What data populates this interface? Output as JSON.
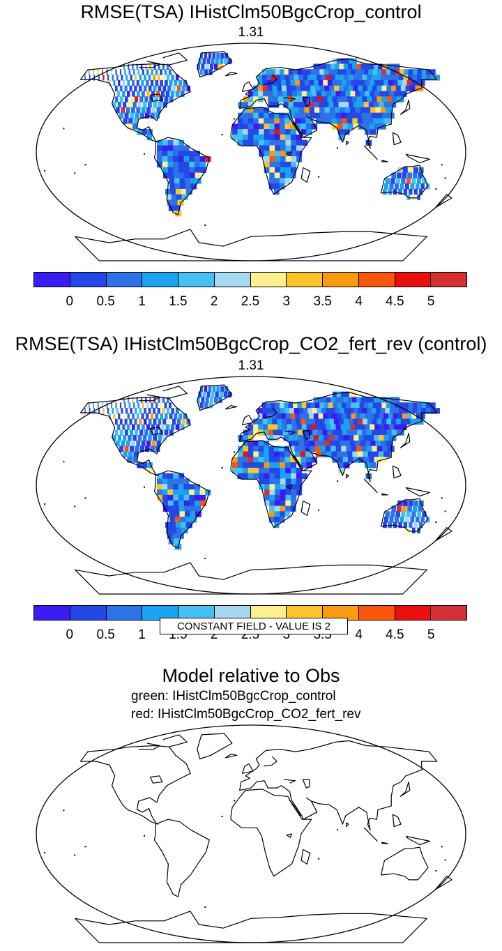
{
  "panels": [
    {
      "title": "RMSE(TSA) IHistClm50BgcCrop_control",
      "value": "1.31"
    },
    {
      "title": "RMSE(TSA) IHistClm50BgcCrop_CO2_fert_rev (control)",
      "value": "1.31"
    }
  ],
  "colorbar": {
    "colors": [
      "#3a1cf2",
      "#2348e6",
      "#2e72e8",
      "#1aa3f0",
      "#45c0f2",
      "#a6d8f2",
      "#fdf18f",
      "#fbc52a",
      "#fa9a0f",
      "#f8560a",
      "#ea0f0f",
      "#d42f32"
    ],
    "labels": [
      "0",
      "0.5",
      "1",
      "1.5",
      "2",
      "2.5",
      "3",
      "3.5",
      "4",
      "4.5",
      "5"
    ]
  },
  "bottom": {
    "title": "Model relative to Obs",
    "legend_green": "green: IHistClm50BgcCrop_control",
    "legend_red": "red: IHistClm50BgcCrop_CO2_fert_rev",
    "note": "CONSTANT FIELD - VALUE IS 2"
  }
}
